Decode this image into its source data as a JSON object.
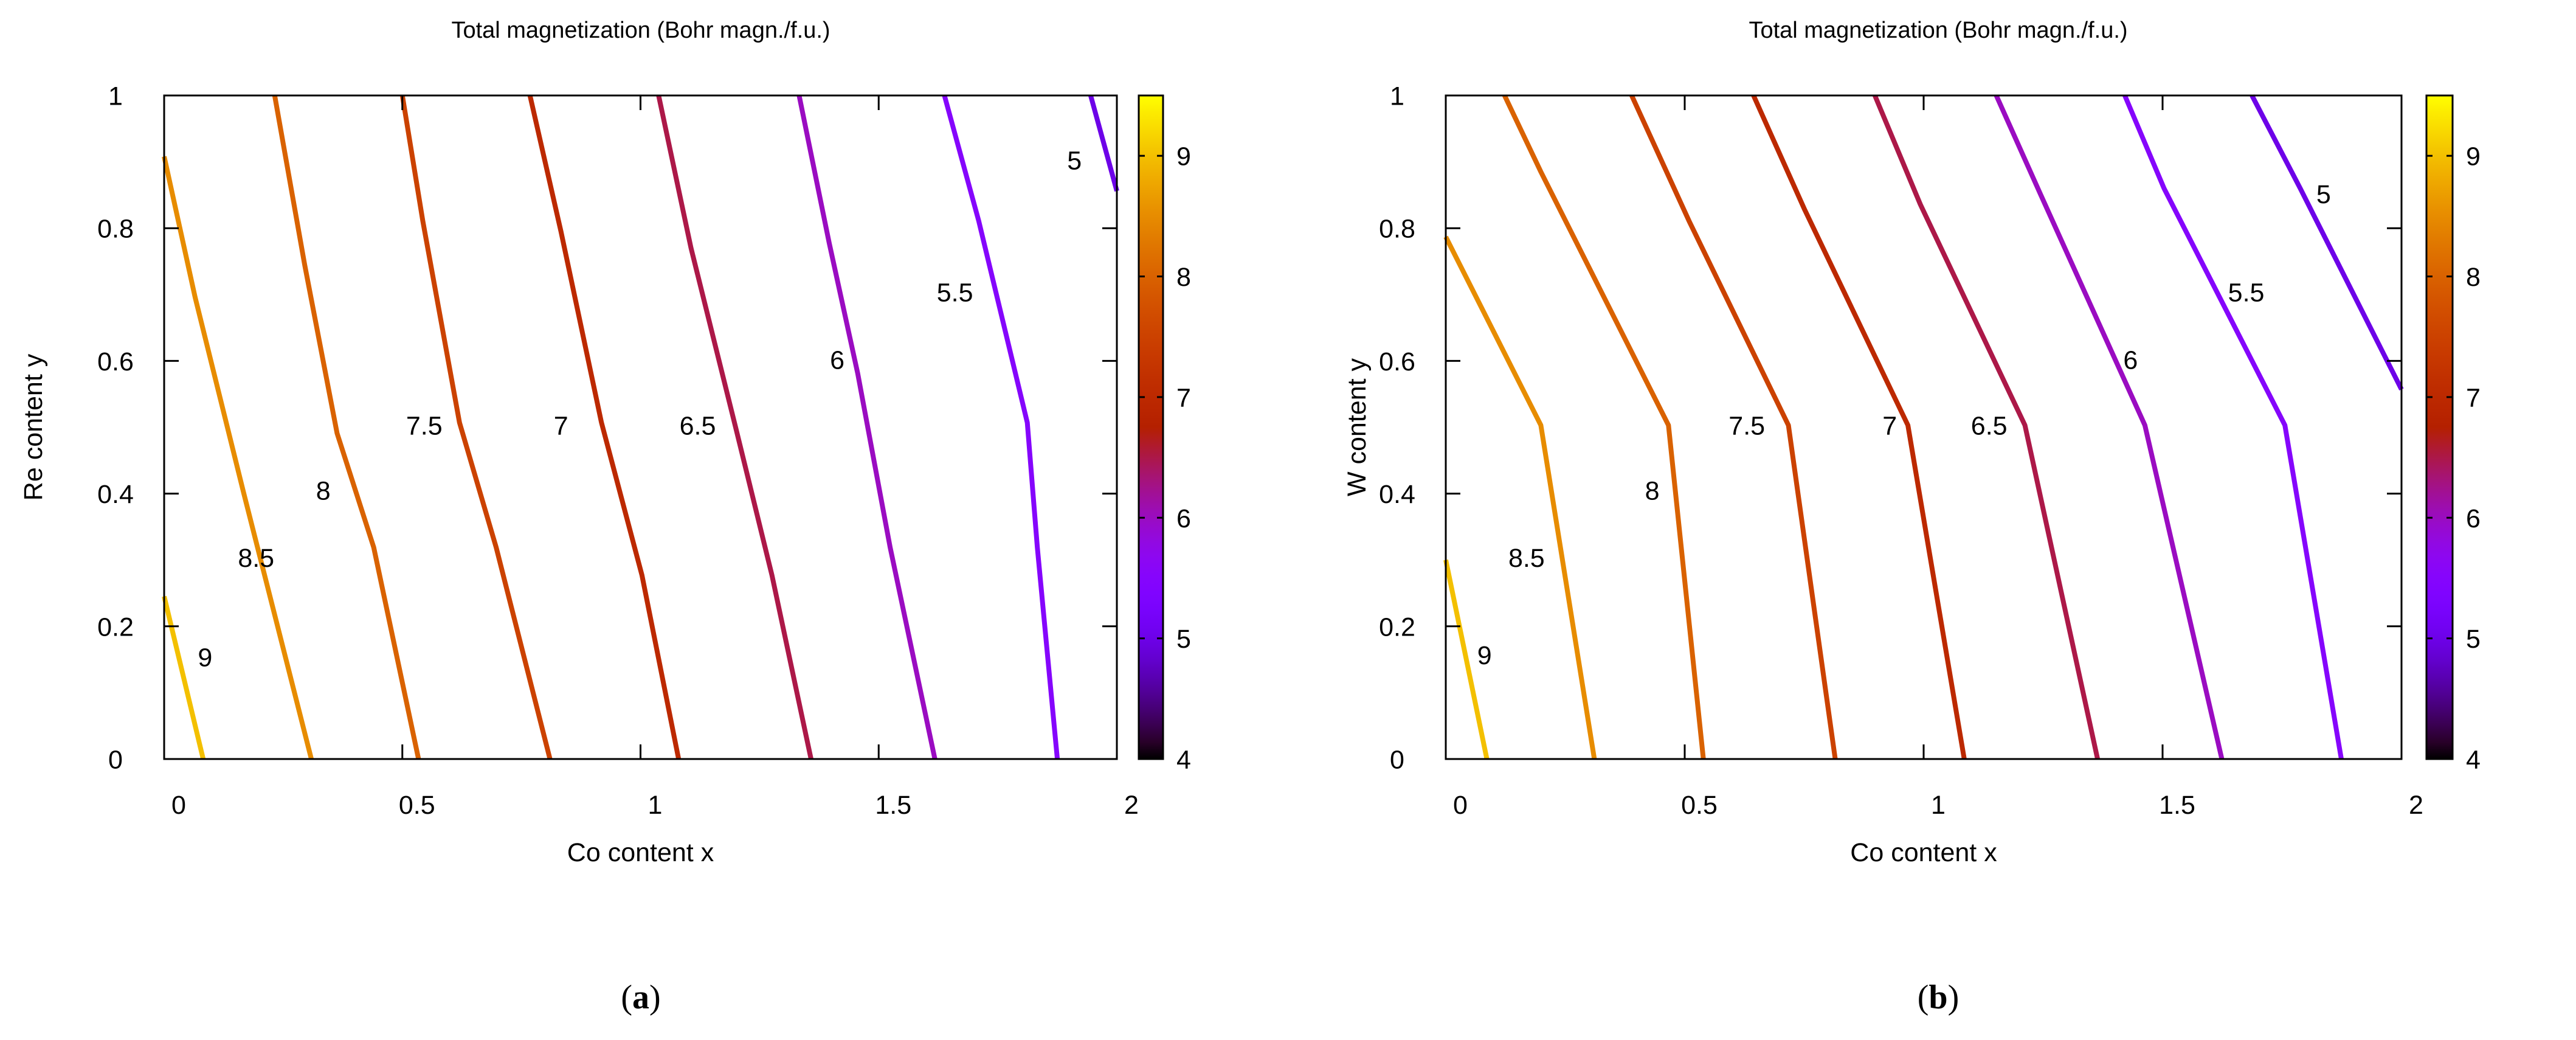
{
  "chart_data": [
    {
      "type": "line",
      "subtype": "contour",
      "panel_label": "a",
      "title": "Total magnetization (Bohr magn./f.u.)",
      "xlabel": "Co content x",
      "ylabel": "Re content y",
      "xlim": [
        0,
        2
      ],
      "ylim": [
        0,
        1
      ],
      "xticks": [
        "0",
        "0.5",
        "1",
        "1.5",
        "2"
      ],
      "yticks": [
        "0",
        "0.2",
        "0.4",
        "0.6",
        "0.8",
        "1"
      ],
      "grid": false,
      "colorbar": {
        "range": [
          4,
          9.5
        ],
        "ticks": [
          "4",
          "5",
          "6",
          "7",
          "8",
          "9"
        ],
        "palette": "black-purple-red-yellow"
      },
      "series": [
        {
          "name": "9",
          "points": [
            [
              0,
              0.245
            ],
            [
              0.082,
              0
            ]
          ],
          "label_at": [
            0.086,
            0.154
          ]
        },
        {
          "name": "8.5",
          "points": [
            [
              0,
              0.908
            ],
            [
              0.065,
              0.696
            ],
            [
              0.167,
              0.401
            ],
            [
              0.309,
              0
            ]
          ],
          "label_at": [
            0.193,
            0.304
          ]
        },
        {
          "name": "8",
          "points": [
            [
              0.232,
              1
            ],
            [
              0.295,
              0.745
            ],
            [
              0.363,
              0.491
            ],
            [
              0.44,
              0.319
            ],
            [
              0.534,
              0
            ]
          ],
          "label_at": [
            0.334,
            0.405
          ]
        },
        {
          "name": "7.5",
          "points": [
            [
              0.5,
              1
            ],
            [
              0.543,
              0.811
            ],
            [
              0.62,
              0.507
            ],
            [
              0.697,
              0.319
            ],
            [
              0.81,
              0
            ]
          ],
          "label_at": [
            0.546,
            0.503
          ]
        },
        {
          "name": "7",
          "points": [
            [
              0.768,
              1
            ],
            [
              0.833,
              0.795
            ],
            [
              0.918,
              0.507
            ],
            [
              1.003,
              0.277
            ],
            [
              1.08,
              0
            ]
          ],
          "label_at": [
            0.833,
            0.503
          ]
        },
        {
          "name": "6.5",
          "points": [
            [
              1.038,
              1
            ],
            [
              1.106,
              0.77
            ],
            [
              1.2,
              0.499
            ],
            [
              1.276,
              0.277
            ],
            [
              1.358,
              0
            ]
          ],
          "label_at": [
            1.12,
            0.503
          ]
        },
        {
          "name": "6",
          "points": [
            [
              1.333,
              1
            ],
            [
              1.396,
              0.778
            ],
            [
              1.456,
              0.581
            ],
            [
              1.524,
              0.319
            ],
            [
              1.618,
              0
            ]
          ],
          "label_at": [
            1.413,
            0.602
          ]
        },
        {
          "name": "5.5",
          "points": [
            [
              1.638,
              1
            ],
            [
              1.71,
              0.811
            ],
            [
              1.812,
              0.507
            ],
            [
              1.833,
              0.319
            ],
            [
              1.875,
              0
            ]
          ],
          "label_at": [
            1.66,
            0.704
          ]
        },
        {
          "name": "5",
          "points": [
            [
              1.945,
              1
            ],
            [
              2.0,
              0.856
            ]
          ],
          "label_at": [
            1.911,
            0.903
          ]
        }
      ]
    },
    {
      "type": "line",
      "subtype": "contour",
      "panel_label": "b",
      "title": "Total magnetization (Bohr magn./f.u.)",
      "xlabel": "Co content x",
      "ylabel": "W content y",
      "xlim": [
        0,
        2
      ],
      "ylim": [
        0,
        1
      ],
      "xticks": [
        "0",
        "0.5",
        "1",
        "1.5",
        "2"
      ],
      "yticks": [
        "0",
        "0.2",
        "0.4",
        "0.6",
        "0.8",
        "1"
      ],
      "grid": false,
      "colorbar": {
        "range": [
          4,
          9.5
        ],
        "ticks": [
          "4",
          "5",
          "6",
          "7",
          "8",
          "9"
        ],
        "palette": "black-purple-red-yellow"
      },
      "series": [
        {
          "name": "9",
          "points": [
            [
              0,
              0.3
            ],
            [
              0.086,
              0
            ]
          ],
          "label_at": [
            0.081,
            0.157
          ]
        },
        {
          "name": "8.5",
          "points": [
            [
              0,
              0.787
            ],
            [
              0.199,
              0.503
            ],
            [
              0.311,
              0
            ]
          ],
          "label_at": [
            0.169,
            0.304
          ]
        },
        {
          "name": "8",
          "points": [
            [
              0.123,
              1
            ],
            [
              0.199,
              0.885
            ],
            [
              0.466,
              0.503
            ],
            [
              0.539,
              0
            ]
          ],
          "label_at": [
            0.432,
            0.405
          ]
        },
        {
          "name": "7.5",
          "points": [
            [
              0.389,
              1
            ],
            [
              0.509,
              0.811
            ],
            [
              0.717,
              0.503
            ],
            [
              0.815,
              0
            ]
          ],
          "label_at": [
            0.63,
            0.503
          ]
        },
        {
          "name": "7",
          "points": [
            [
              0.644,
              1
            ],
            [
              0.751,
              0.828
            ],
            [
              0.967,
              0.503
            ],
            [
              1.085,
              0
            ]
          ],
          "label_at": [
            0.929,
            0.503
          ]
        },
        {
          "name": "6.5",
          "points": [
            [
              0.898,
              1
            ],
            [
              0.993,
              0.836
            ],
            [
              1.212,
              0.503
            ],
            [
              1.364,
              0
            ]
          ],
          "label_at": [
            1.137,
            0.503
          ]
        },
        {
          "name": "6",
          "points": [
            [
              1.152,
              1
            ],
            [
              1.244,
              0.852
            ],
            [
              1.463,
              0.503
            ],
            [
              1.624,
              0
            ]
          ],
          "label_at": [
            1.433,
            0.602
          ]
        },
        {
          "name": "5.5",
          "points": [
            [
              1.421,
              1
            ],
            [
              1.503,
              0.86
            ],
            [
              1.756,
              0.503
            ],
            [
              1.874,
              0
            ]
          ],
          "label_at": [
            1.675,
            0.704
          ]
        },
        {
          "name": "5",
          "points": [
            [
              1.687,
              1
            ],
            [
              1.788,
              0.86
            ],
            [
              2.0,
              0.557
            ]
          ],
          "label_at": [
            1.837,
            0.852
          ]
        }
      ]
    }
  ]
}
